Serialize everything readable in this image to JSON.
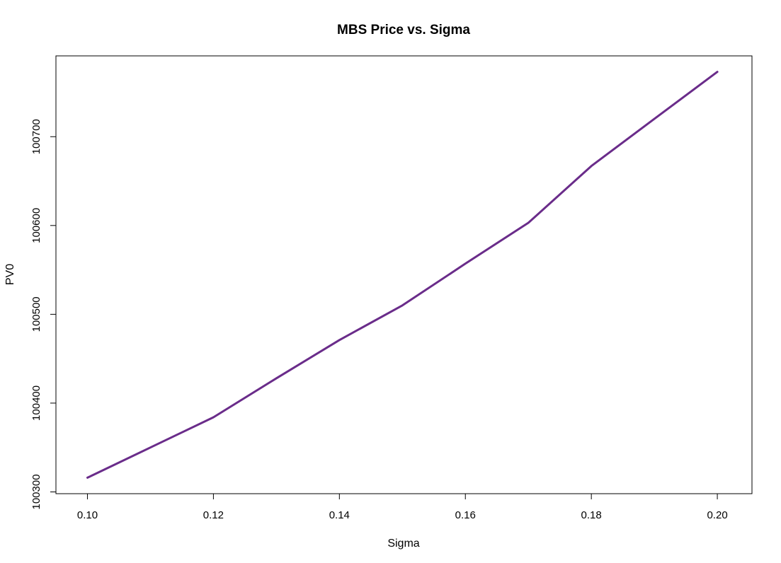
{
  "chart_data": {
    "type": "line",
    "title": "MBS Price vs. Sigma",
    "xlabel": "Sigma",
    "ylabel": "PV0",
    "x": [
      0.1,
      0.11,
      0.12,
      0.13,
      0.14,
      0.15,
      0.16,
      0.17,
      0.18,
      0.19,
      0.2
    ],
    "series": [
      {
        "values": [
          100316,
          100350,
          100384,
          100428,
          100471,
          100510,
          100557,
          100603,
          100667,
          100720,
          100773
        ],
        "color": "#6a2c8a"
      }
    ],
    "xticks": [
      "0.10",
      "0.12",
      "0.14",
      "0.16",
      "0.18",
      "0.20"
    ],
    "yticks": [
      "100300",
      "100400",
      "100500",
      "100600",
      "100700"
    ],
    "xlim": [
      0.095,
      0.2055
    ],
    "ylim": [
      100298,
      100791
    ],
    "grid": false,
    "legend": "none"
  }
}
